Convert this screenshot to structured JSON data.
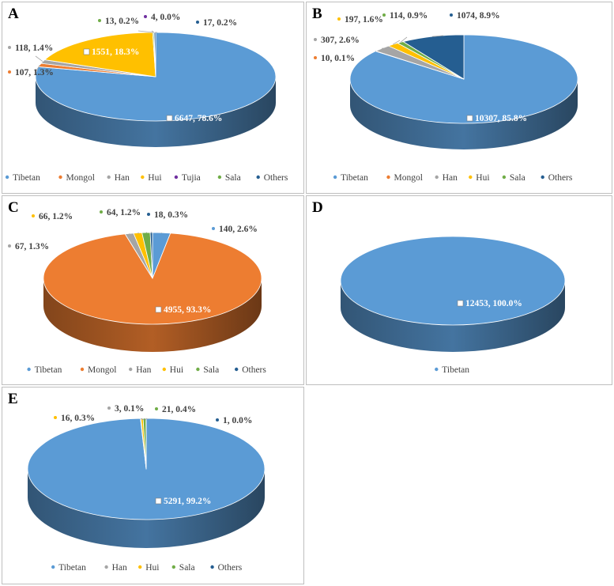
{
  "colors": {
    "Tibetan": "#5B9BD5",
    "Mongol": "#ED7D31",
    "Han": "#A5A5A5",
    "Hui": "#FFC000",
    "Tujia": "#7030A0",
    "Sala": "#70AD47",
    "Others": "#255E91",
    "label_text": "#404040",
    "leader": "#a6a6a6"
  },
  "chart_data": [
    {
      "id": "A",
      "type": "pie",
      "title": "A",
      "legend": [
        "Tibetan",
        "Mongol",
        "Han",
        "Hui",
        "Tujia",
        "Sala",
        "Others"
      ],
      "slices": [
        {
          "name": "Tibetan",
          "value": 6647,
          "label": "6647, 78.6%"
        },
        {
          "name": "Mongol",
          "value": 107,
          "label": "107, 1.3%"
        },
        {
          "name": "Han",
          "value": 118,
          "label": "118, 1.4%"
        },
        {
          "name": "Hui",
          "value": 1551,
          "label": "1551, 18.3%"
        },
        {
          "name": "Sala",
          "value": 13,
          "label": "13, 0.2%"
        },
        {
          "name": "Tujia",
          "value": 4,
          "label": "4, 0.0%"
        },
        {
          "name": "Others",
          "value": 17,
          "label": "17, 0.2%"
        }
      ]
    },
    {
      "id": "B",
      "type": "pie",
      "title": "B",
      "legend": [
        "Tibetan",
        "Mongol",
        "Han",
        "Hui",
        "Sala",
        "Others"
      ],
      "slices": [
        {
          "name": "Tibetan",
          "value": 10307,
          "label": "10307, 85.8%"
        },
        {
          "name": "Mongol",
          "value": 10,
          "label": "10, 0.1%"
        },
        {
          "name": "Han",
          "value": 307,
          "label": "307, 2.6%"
        },
        {
          "name": "Hui",
          "value": 197,
          "label": "197, 1.6%"
        },
        {
          "name": "Sala",
          "value": 114,
          "label": "114, 0.9%"
        },
        {
          "name": "Others",
          "value": 1074,
          "label": "1074, 8.9%"
        }
      ]
    },
    {
      "id": "C",
      "type": "pie",
      "title": "C",
      "legend": [
        "Tibetan",
        "Mongol",
        "Han",
        "Hui",
        "Sala",
        "Others"
      ],
      "slices": [
        {
          "name": "Tibetan",
          "value": 140,
          "label": "140, 2.6%"
        },
        {
          "name": "Mongol",
          "value": 4955,
          "label": "4955, 93.3%"
        },
        {
          "name": "Han",
          "value": 67,
          "label": "67, 1.3%"
        },
        {
          "name": "Hui",
          "value": 66,
          "label": "66, 1.2%"
        },
        {
          "name": "Sala",
          "value": 64,
          "label": "64, 1.2%"
        },
        {
          "name": "Others",
          "value": 18,
          "label": "18, 0.3%"
        }
      ]
    },
    {
      "id": "D",
      "type": "pie",
      "title": "D",
      "legend": [
        "Tibetan"
      ],
      "slices": [
        {
          "name": "Tibetan",
          "value": 12453,
          "label": "12453, 100.0%"
        }
      ]
    },
    {
      "id": "E",
      "type": "pie",
      "title": "E",
      "legend": [
        "Tibetan",
        "Han",
        "Hui",
        "Sala",
        "Others"
      ],
      "slices": [
        {
          "name": "Tibetan",
          "value": 5291,
          "label": "5291, 99.2%"
        },
        {
          "name": "Han",
          "value": 3,
          "label": "3, 0.1%"
        },
        {
          "name": "Hui",
          "value": 16,
          "label": "16, 0.3%"
        },
        {
          "name": "Sala",
          "value": 21,
          "label": "21, 0.4%"
        },
        {
          "name": "Others",
          "value": 1,
          "label": "1, 0.0%"
        }
      ]
    }
  ]
}
